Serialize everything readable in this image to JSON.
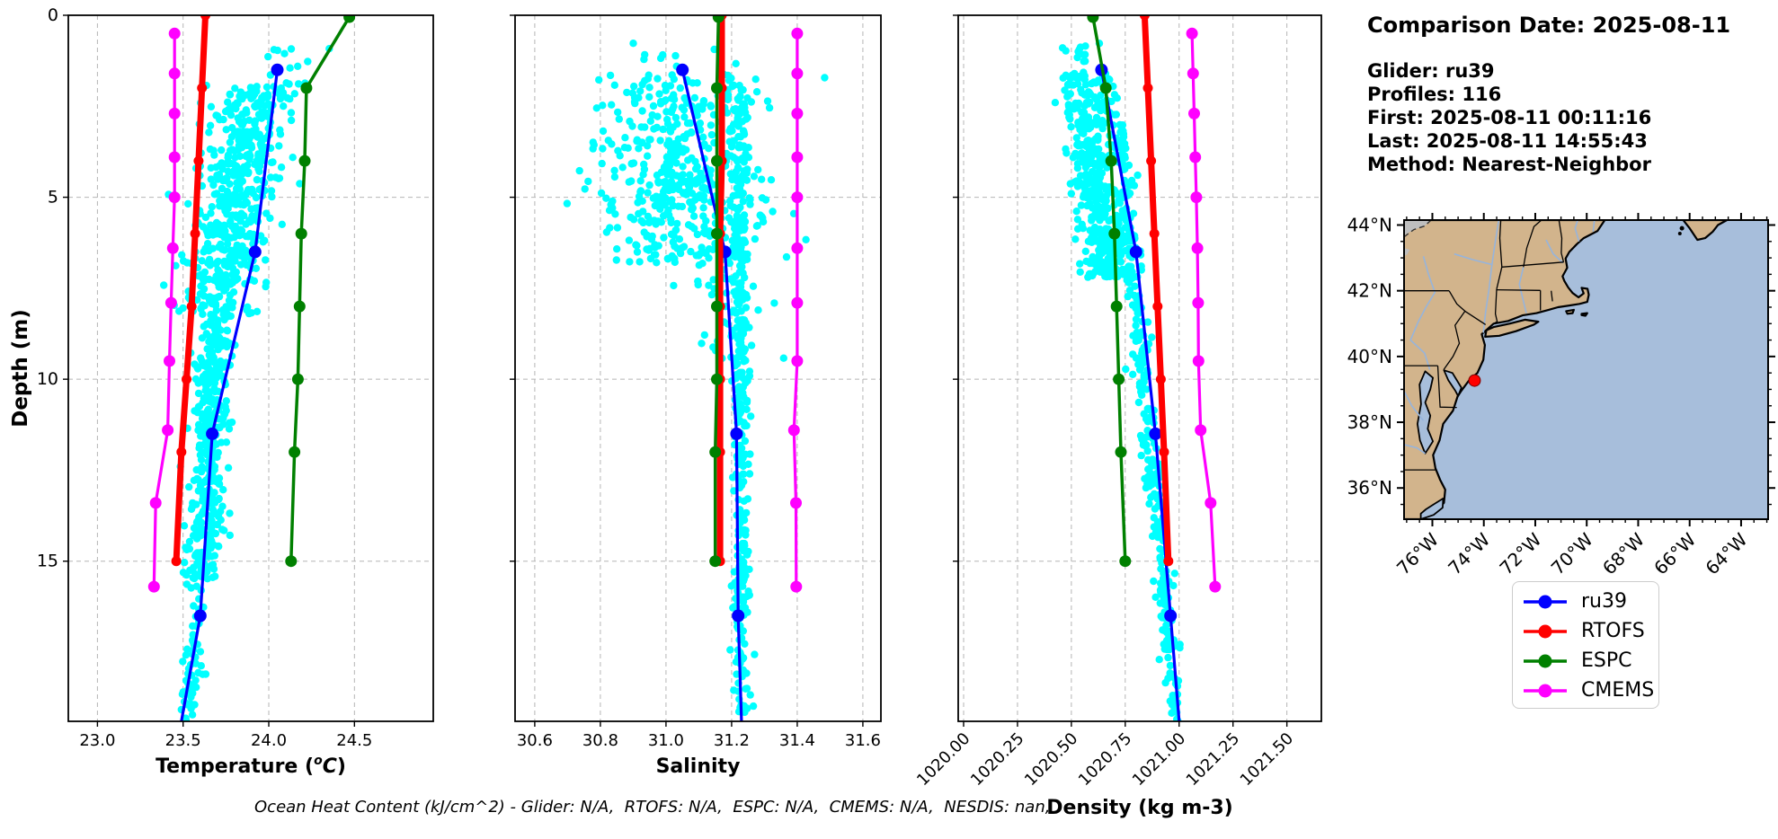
{
  "info": {
    "title": "Comparison Date: 2025-08-11",
    "lines": [
      "Glider: ru39",
      "Profiles: 116",
      "First: 2025-08-11 00:11:16",
      "Last: 2025-08-11 14:55:43",
      "Method: Nearest-Neighbor"
    ]
  },
  "caption": "Ocean Heat Content (kJ/cm^2) - Glider: N/A,  RTOFS: N/A,  ESPC: N/A,  CMEMS: N/A,  NESDIS: nan,",
  "legend": {
    "items": [
      {
        "label": "ru39",
        "color": "#0000ff"
      },
      {
        "label": "RTOFS",
        "color": "#ff0000"
      },
      {
        "label": "ESPC",
        "color": "#008000"
      },
      {
        "label": "CMEMS",
        "color": "#ff00ff"
      }
    ]
  },
  "chart_data": [
    {
      "type": "scatter",
      "title": "",
      "xlabel": "Temperature (°C)",
      "xlabel_parts": {
        "prefix": "Temperature (",
        "sup": "o",
        "italic": "C",
        "suffix": ")"
      },
      "ylabel": "Depth (m)",
      "xlim": [
        22.83,
        24.96
      ],
      "ylim": [
        0,
        19.4
      ],
      "y_inverted": true,
      "grid": true,
      "xticks": {
        "values": [
          23.0,
          23.5,
          24.0,
          24.5
        ],
        "labels": [
          "23.0",
          "23.5",
          "24.0",
          "24.5"
        ],
        "rotation": 0
      },
      "yticks": {
        "values": [
          0,
          5,
          10,
          15
        ],
        "labels": [
          "0",
          "5",
          "10",
          "15"
        ],
        "show_labels": true
      },
      "series": [
        {
          "name": "ru39",
          "color": "#0000ff",
          "line_width": 3.2,
          "marker_radius": 7,
          "points": [
            [
              24.05,
              1.5
            ],
            [
              23.92,
              6.5
            ],
            [
              23.67,
              11.5
            ],
            [
              23.6,
              16.5
            ]
          ],
          "tail": [
            [
              23.49,
              19.4
            ]
          ]
        },
        {
          "name": "RTOFS",
          "color": "#ff0000",
          "line_width": 7,
          "marker_radius": 5.5,
          "points": [
            [
              23.63,
              0
            ],
            [
              23.61,
              2
            ],
            [
              23.59,
              4
            ],
            [
              23.57,
              6
            ],
            [
              23.55,
              8
            ],
            [
              23.52,
              10
            ],
            [
              23.49,
              12
            ],
            [
              23.46,
              15
            ]
          ],
          "tail": []
        },
        {
          "name": "ESPC",
          "color": "#008000",
          "line_width": 3.5,
          "marker_radius": 6.5,
          "points": [
            [
              24.47,
              0.05
            ],
            [
              24.22,
              2
            ],
            [
              24.21,
              4
            ],
            [
              24.19,
              6
            ],
            [
              24.18,
              8
            ],
            [
              24.17,
              10
            ],
            [
              24.15,
              12
            ],
            [
              24.13,
              15
            ]
          ],
          "tail": []
        },
        {
          "name": "CMEMS",
          "color": "#ff00ff",
          "line_width": 3.2,
          "marker_radius": 6.5,
          "points": [
            [
              23.45,
              0.5
            ],
            [
              23.45,
              1.6
            ],
            [
              23.45,
              2.7
            ],
            [
              23.45,
              3.9
            ],
            [
              23.45,
              5.0
            ],
            [
              23.44,
              6.4
            ],
            [
              23.43,
              7.9
            ],
            [
              23.42,
              9.5
            ],
            [
              23.41,
              11.4
            ],
            [
              23.34,
              13.4
            ],
            [
              23.33,
              15.7
            ]
          ],
          "tail": []
        }
      ],
      "glider_scatter": {
        "name": "ru39 raw points",
        "color": "#00ffff",
        "dot_radius": 4.2,
        "seed": 101,
        "clusters": [
          {
            "n": 520,
            "depth": [
              1.9,
              8.3
            ],
            "center": [
              23.93,
              23.7
            ],
            "sigma": 0.12
          },
          {
            "n": 380,
            "depth": [
              8.3,
              15.5
            ],
            "center": [
              23.69,
              23.62
            ],
            "sigma": 0.05
          },
          {
            "n": 60,
            "depth": [
              15.5,
              19.4
            ],
            "center": [
              23.58,
              23.54
            ],
            "sigma": 0.03
          },
          {
            "n": 18,
            "depth": [
              0.9,
              2.2
            ],
            "center": [
              24.12,
              24.08
            ],
            "sigma": 0.09
          }
        ]
      }
    },
    {
      "type": "scatter",
      "title": "",
      "xlabel": "Salinity",
      "xlim": [
        30.54,
        31.655
      ],
      "ylim": [
        0,
        19.4
      ],
      "y_inverted": true,
      "grid": true,
      "xticks": {
        "values": [
          30.6,
          30.8,
          31.0,
          31.2,
          31.4,
          31.6
        ],
        "labels": [
          "30.6",
          "30.8",
          "31.0",
          "31.2",
          "31.4",
          "31.6"
        ],
        "rotation": 0
      },
      "yticks": {
        "values": [
          0,
          5,
          10,
          15
        ],
        "labels": [
          "0",
          "5",
          "10",
          "15"
        ],
        "show_labels": false
      },
      "series": [
        {
          "name": "ru39",
          "color": "#0000ff",
          "line_width": 3.2,
          "marker_radius": 7,
          "points": [
            [
              31.05,
              1.5
            ],
            [
              31.18,
              6.5
            ],
            [
              31.215,
              11.5
            ],
            [
              31.22,
              16.5
            ]
          ],
          "tail": [
            [
              31.23,
              19.4
            ]
          ]
        },
        {
          "name": "RTOFS",
          "color": "#ff0000",
          "line_width": 7,
          "marker_radius": 5.5,
          "points": [
            [
              31.17,
              0
            ],
            [
              31.17,
              2
            ],
            [
              31.17,
              4
            ],
            [
              31.165,
              6
            ],
            [
              31.165,
              8
            ],
            [
              31.165,
              10
            ],
            [
              31.165,
              12
            ],
            [
              31.165,
              15
            ]
          ],
          "tail": []
        },
        {
          "name": "ESPC",
          "color": "#008000",
          "line_width": 3.5,
          "marker_radius": 6.5,
          "points": [
            [
              31.16,
              0.05
            ],
            [
              31.155,
              2
            ],
            [
              31.155,
              4
            ],
            [
              31.155,
              6
            ],
            [
              31.155,
              8
            ],
            [
              31.155,
              10
            ],
            [
              31.15,
              12
            ],
            [
              31.15,
              15
            ]
          ],
          "tail": []
        },
        {
          "name": "CMEMS",
          "color": "#ff00ff",
          "line_width": 3.2,
          "marker_radius": 6.5,
          "points": [
            [
              31.4,
              0.5
            ],
            [
              31.4,
              1.6
            ],
            [
              31.4,
              2.7
            ],
            [
              31.4,
              3.9
            ],
            [
              31.4,
              5.0
            ],
            [
              31.4,
              6.4
            ],
            [
              31.4,
              7.9
            ],
            [
              31.4,
              9.5
            ],
            [
              31.39,
              11.4
            ],
            [
              31.396,
              13.4
            ],
            [
              31.397,
              15.7
            ]
          ],
          "tail": []
        }
      ],
      "glider_scatter": {
        "name": "ru39 raw points",
        "color": "#00ffff",
        "dot_radius": 4.2,
        "seed": 202,
        "clusters": [
          {
            "n": 430,
            "depth": [
              1.6,
              6.8
            ],
            "center": [
              31.02,
              31.04
            ],
            "sigma": 0.13
          },
          {
            "n": 390,
            "depth": [
              2.0,
              19.4
            ],
            "center": [
              31.225,
              31.232
            ],
            "sigma": 0.014
          },
          {
            "n": 70,
            "depth": [
              4.5,
              9.5
            ],
            "center": [
              31.1,
              31.2
            ],
            "sigma": 0.055
          },
          {
            "n": 10,
            "depth": [
              0.7,
              1.8
            ],
            "center": [
              31.0,
              31.02
            ],
            "sigma": 0.09
          }
        ]
      }
    },
    {
      "type": "scatter",
      "title": "",
      "xlabel": "Density (kg m-3)",
      "xlim": [
        1019.975,
        1021.66
      ],
      "ylim": [
        0,
        19.4
      ],
      "y_inverted": true,
      "grid": true,
      "xticks": {
        "values": [
          1020.0,
          1020.25,
          1020.5,
          1020.75,
          1021.0,
          1021.25,
          1021.5
        ],
        "labels": [
          "1020.00",
          "1020.25",
          "1020.50",
          "1020.75",
          "1021.00",
          "1021.25",
          "1021.50"
        ],
        "rotation": 45
      },
      "yticks": {
        "values": [
          0,
          5,
          10,
          15
        ],
        "labels": [
          "0",
          "5",
          "10",
          "15"
        ],
        "show_labels": false
      },
      "series": [
        {
          "name": "ru39",
          "color": "#0000ff",
          "line_width": 3.2,
          "marker_radius": 7,
          "points": [
            [
              1020.64,
              1.5
            ],
            [
              1020.8,
              6.5
            ],
            [
              1020.89,
              11.5
            ],
            [
              1020.96,
              16.5
            ]
          ],
          "tail": [
            [
              1021.0,
              19.4
            ]
          ]
        },
        {
          "name": "RTOFS",
          "color": "#ff0000",
          "line_width": 7,
          "marker_radius": 5.5,
          "points": [
            [
              1020.84,
              0
            ],
            [
              1020.855,
              2
            ],
            [
              1020.87,
              4
            ],
            [
              1020.885,
              6
            ],
            [
              1020.9,
              8
            ],
            [
              1020.915,
              10
            ],
            [
              1020.93,
              12
            ],
            [
              1020.95,
              15
            ]
          ],
          "tail": []
        },
        {
          "name": "ESPC",
          "color": "#008000",
          "line_width": 3.5,
          "marker_radius": 6.5,
          "points": [
            [
              1020.6,
              0.05
            ],
            [
              1020.66,
              2
            ],
            [
              1020.685,
              4
            ],
            [
              1020.7,
              6
            ],
            [
              1020.71,
              8
            ],
            [
              1020.72,
              10
            ],
            [
              1020.73,
              12
            ],
            [
              1020.75,
              15
            ]
          ],
          "tail": []
        },
        {
          "name": "CMEMS",
          "color": "#ff00ff",
          "line_width": 3.2,
          "marker_radius": 6.5,
          "points": [
            [
              1021.06,
              0.5
            ],
            [
              1021.065,
              1.6
            ],
            [
              1021.07,
              2.7
            ],
            [
              1021.075,
              3.9
            ],
            [
              1021.08,
              5.0
            ],
            [
              1021.085,
              6.4
            ],
            [
              1021.088,
              7.9
            ],
            [
              1021.09,
              9.5
            ],
            [
              1021.1,
              11.4
            ],
            [
              1021.146,
              13.4
            ],
            [
              1021.167,
              15.7
            ]
          ],
          "tail": []
        }
      ],
      "glider_scatter": {
        "name": "ru39 raw points",
        "color": "#00ffff",
        "dot_radius": 4.2,
        "seed": 303,
        "clusters": [
          {
            "n": 430,
            "depth": [
              1.6,
              7.2
            ],
            "center": [
              1020.56,
              1020.67
            ],
            "sigma": 0.062
          },
          {
            "n": 340,
            "depth": [
              3.0,
              19.4
            ],
            "center": [
              1020.72,
              1020.99
            ],
            "sigma": 0.021
          },
          {
            "n": 14,
            "depth": [
              0.7,
              1.8
            ],
            "center": [
              1020.53,
              1020.56
            ],
            "sigma": 0.05
          }
        ]
      }
    }
  ],
  "map": {
    "extent": {
      "lon": [
        -77.1,
        -62.95
      ],
      "lat": [
        35.05,
        44.15
      ]
    },
    "lon_ticks": {
      "major_values": [
        -76,
        -74,
        -72,
        -70,
        -68,
        -66,
        -64
      ],
      "labels": [
        "76°W",
        "74°W",
        "72°W",
        "70°W",
        "68°W",
        "66°W",
        "64°W"
      ],
      "minor_step": 0.5
    },
    "lat_ticks": {
      "major_values": [
        44,
        42,
        40,
        38,
        36
      ],
      "labels": [
        "44°N",
        "42°N",
        "40°N",
        "38°N",
        "36°N"
      ],
      "minor_step": 0.5
    },
    "colors": {
      "ocean": "#a7bedb",
      "land": "#d2b48c",
      "coast": "#000000",
      "border": "#000000",
      "river": "#96b4dc",
      "no_data": "#bebebe"
    },
    "marker": {
      "name": "glider-location",
      "lon": -74.36,
      "lat": 39.27,
      "color": "#ff0000",
      "radius": 6.5
    }
  }
}
